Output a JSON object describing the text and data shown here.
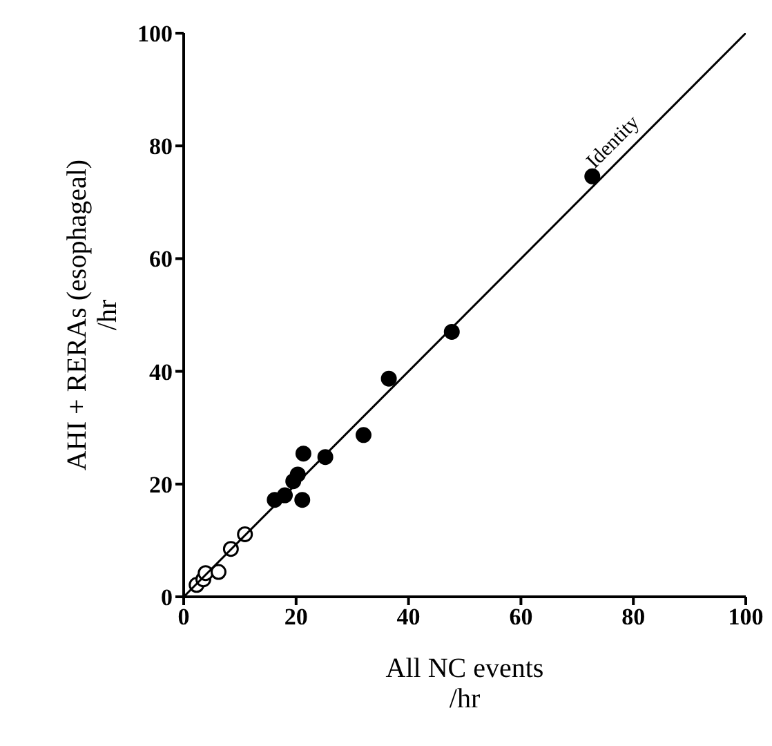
{
  "chart_data": {
    "type": "scatter",
    "xlabel": "All NC events\n/hr",
    "ylabel": "AHI + RERAs (esophageal)\n/hr",
    "xlim": [
      0,
      100
    ],
    "ylim": [
      0,
      100
    ],
    "xticks": [
      0,
      20,
      40,
      60,
      80,
      100
    ],
    "yticks": [
      0,
      20,
      40,
      60,
      80,
      100
    ],
    "grid": false,
    "legend": false,
    "marker": "circle",
    "series": [
      {
        "color": "#000000",
        "x": [
          16.2,
          18,
          19.5,
          20.3,
          21.1,
          21.3,
          25.2,
          32,
          36.5,
          47.7,
          72.7
        ],
        "values": [
          17.2,
          18,
          20.5,
          21.7,
          17.2,
          25.4,
          24.8,
          28.7,
          38.7,
          47,
          74.6
        ]
      },
      {
        "color": "#ffffff",
        "x": [
          2.3,
          3.5,
          3.9,
          6.2,
          8.4,
          10.9
        ],
        "values": [
          2.1,
          3.1,
          4.2,
          4.4,
          8.5,
          11.1
        ]
      },
      {
        "type": "line",
        "color": "#000000",
        "marker": "none",
        "x": [
          0,
          100
        ],
        "values": [
          0,
          100
        ]
      }
    ],
    "annotations": [
      "Identity"
    ]
  }
}
